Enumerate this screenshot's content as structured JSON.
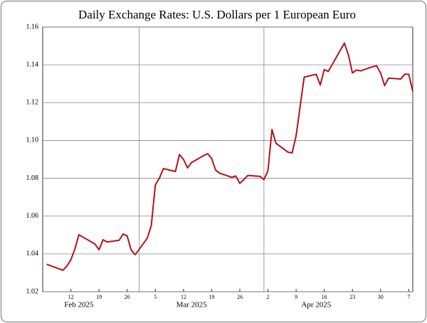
{
  "chart_data": {
    "type": "line",
    "title": "Daily Exchange Rates: U.S. Dollars per 1 European Euro",
    "x": [
      "2025-02-06",
      "2025-02-10",
      "2025-02-11",
      "2025-02-12",
      "2025-02-13",
      "2025-02-14",
      "2025-02-18",
      "2025-02-19",
      "2025-02-20",
      "2025-02-21",
      "2025-02-24",
      "2025-02-25",
      "2025-02-26",
      "2025-02-27",
      "2025-02-28",
      "2025-03-03",
      "2025-03-04",
      "2025-03-05",
      "2025-03-06",
      "2025-03-07",
      "2025-03-10",
      "2025-03-11",
      "2025-03-12",
      "2025-03-13",
      "2025-03-14",
      "2025-03-17",
      "2025-03-18",
      "2025-03-19",
      "2025-03-20",
      "2025-03-21",
      "2025-03-24",
      "2025-03-25",
      "2025-03-26",
      "2025-03-27",
      "2025-03-28",
      "2025-03-31",
      "2025-04-01",
      "2025-04-02",
      "2025-04-03",
      "2025-04-04",
      "2025-04-07",
      "2025-04-08",
      "2025-04-09",
      "2025-04-10",
      "2025-04-11",
      "2025-04-14",
      "2025-04-15",
      "2025-04-16",
      "2025-04-17",
      "2025-04-21",
      "2025-04-22",
      "2025-04-23",
      "2025-04-24",
      "2025-04-25",
      "2025-04-28",
      "2025-04-29",
      "2025-04-30",
      "2025-05-01",
      "2025-05-02",
      "2025-05-05",
      "2025-05-06",
      "2025-05-07",
      "2025-05-08"
    ],
    "series": [
      {
        "color": "#b5121b",
        "values": [
          1.0345,
          1.0313,
          1.0335,
          1.0369,
          1.0426,
          1.0501,
          1.0452,
          1.0422,
          1.0475,
          1.0463,
          1.0472,
          1.0505,
          1.0495,
          1.042,
          1.0396,
          1.0483,
          1.055,
          1.0765,
          1.08,
          1.0851,
          1.0836,
          1.0926,
          1.09,
          1.0855,
          1.0883,
          1.092,
          1.093,
          1.0905,
          1.0843,
          1.0827,
          1.0805,
          1.0812,
          1.0773,
          1.0793,
          1.0815,
          1.081,
          1.0793,
          1.084,
          1.1058,
          1.0985,
          1.0938,
          1.0934,
          1.1025,
          1.118,
          1.1335,
          1.135,
          1.1293,
          1.1375,
          1.1365,
          1.1515,
          1.1453,
          1.1357,
          1.1373,
          1.1368,
          1.139,
          1.1395,
          1.1357,
          1.129,
          1.133,
          1.1325,
          1.135,
          1.135,
          1.126
        ]
      }
    ],
    "xlim": [
      "2025-02-05",
      "2025-05-08"
    ],
    "xticks": [
      {
        "value": "2025-02-12",
        "label": "12"
      },
      {
        "value": "2025-02-19",
        "label": "19"
      },
      {
        "value": "2025-02-26",
        "label": "26"
      },
      {
        "value": "2025-03-05",
        "label": "5"
      },
      {
        "value": "2025-03-12",
        "label": "12"
      },
      {
        "value": "2025-03-19",
        "label": "19"
      },
      {
        "value": "2025-03-26",
        "label": "26"
      },
      {
        "value": "2025-04-02",
        "label": "2"
      },
      {
        "value": "2025-04-09",
        "label": "9"
      },
      {
        "value": "2025-04-16",
        "label": "16"
      },
      {
        "value": "2025-04-23",
        "label": "23"
      },
      {
        "value": "2025-04-30",
        "label": "30"
      },
      {
        "value": "2025-05-07",
        "label": "7"
      }
    ],
    "months": [
      {
        "value": "2025-02",
        "label": "Feb 2025"
      },
      {
        "value": "2025-03",
        "label": "Mar 2025"
      },
      {
        "value": "2025-04",
        "label": "Apr 2025"
      }
    ],
    "ylim": [
      1.02,
      1.16
    ],
    "yticks": [
      1.02,
      1.04,
      1.06,
      1.08,
      {
        "value": 1.1,
        "label": "1.10"
      },
      1.12,
      1.14,
      1.16
    ],
    "grid": true
  }
}
